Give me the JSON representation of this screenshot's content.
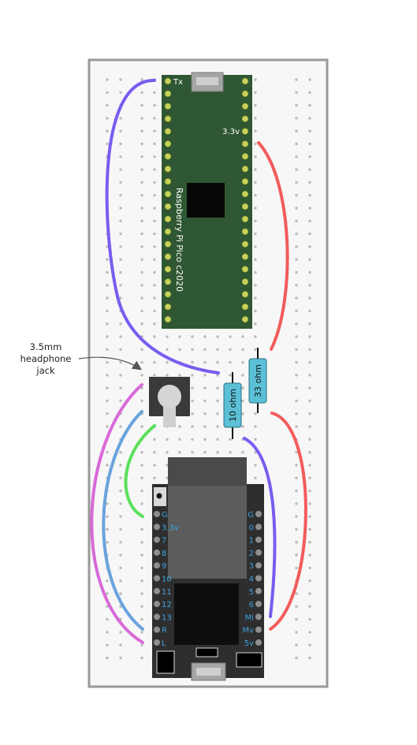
{
  "annotation": {
    "line1": "3.5mm",
    "line2": "headphone",
    "line3": "jack"
  },
  "pico": {
    "label": "Raspberry Pi Pico c2020",
    "pin_tx": "Tx",
    "pin_33v": "3.3v",
    "color": "#2f5733"
  },
  "resistors": [
    {
      "label": "10 ohm"
    },
    {
      "label": "33 ohm"
    }
  ],
  "dac_board": {
    "left_pins": [
      "G",
      "3.3v",
      "7",
      "8",
      "9",
      "10",
      "11",
      "12",
      "13",
      "R",
      "L"
    ],
    "right_pins": [
      "G",
      "0",
      "1",
      "2",
      "3",
      "4",
      "5",
      "6",
      "Mi",
      "Mv",
      "5v"
    ],
    "pin_label_color": "#3ea3e0"
  },
  "wires": {
    "purple": "#7a5cf0",
    "red": "#f25c5c",
    "magenta": "#d86ad8",
    "blue": "#6aa3dc",
    "green": "#5be05b"
  }
}
